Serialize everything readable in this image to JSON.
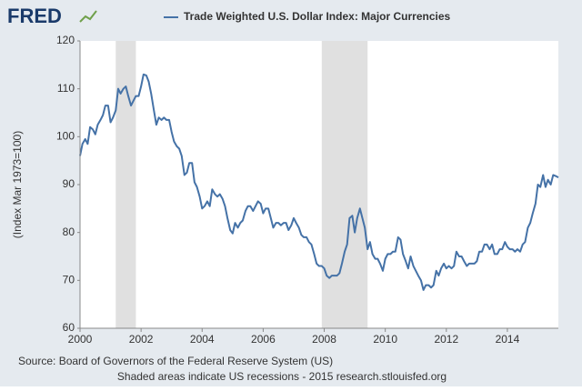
{
  "logo": "FRED",
  "chart_data": {
    "type": "line",
    "y_label": "(Index Mar 1973=100)",
    "source": "Source: Board of Governors of the Federal Reserve System (US)",
    "note": "Shaded areas indicate US recessions - 2015 research.stlouisfed.org",
    "recession_color": "#e0e0e0",
    "recessions": [
      [
        2001.17,
        2001.83
      ],
      [
        2007.92,
        2009.42
      ]
    ],
    "x": [
      2000.0,
      2000.08,
      2000.17,
      2000.25,
      2000.33,
      2000.42,
      2000.5,
      2000.58,
      2000.67,
      2000.75,
      2000.83,
      2000.92,
      2001.0,
      2001.08,
      2001.17,
      2001.25,
      2001.33,
      2001.42,
      2001.5,
      2001.58,
      2001.67,
      2001.75,
      2001.83,
      2001.92,
      2002.0,
      2002.08,
      2002.17,
      2002.25,
      2002.33,
      2002.42,
      2002.5,
      2002.58,
      2002.67,
      2002.75,
      2002.83,
      2002.92,
      2003.0,
      2003.08,
      2003.17,
      2003.25,
      2003.33,
      2003.42,
      2003.5,
      2003.58,
      2003.67,
      2003.75,
      2003.83,
      2003.92,
      2004.0,
      2004.08,
      2004.17,
      2004.25,
      2004.33,
      2004.42,
      2004.5,
      2004.58,
      2004.67,
      2004.75,
      2004.83,
      2004.92,
      2005.0,
      2005.08,
      2005.17,
      2005.25,
      2005.33,
      2005.42,
      2005.5,
      2005.58,
      2005.67,
      2005.75,
      2005.83,
      2005.92,
      2006.0,
      2006.08,
      2006.17,
      2006.25,
      2006.33,
      2006.42,
      2006.5,
      2006.58,
      2006.67,
      2006.75,
      2006.83,
      2006.92,
      2007.0,
      2007.08,
      2007.17,
      2007.25,
      2007.33,
      2007.42,
      2007.5,
      2007.58,
      2007.67,
      2007.75,
      2007.83,
      2007.92,
      2008.0,
      2008.08,
      2008.17,
      2008.25,
      2008.33,
      2008.42,
      2008.5,
      2008.58,
      2008.67,
      2008.75,
      2008.83,
      2008.92,
      2009.0,
      2009.08,
      2009.17,
      2009.25,
      2009.33,
      2009.42,
      2009.5,
      2009.58,
      2009.67,
      2009.75,
      2009.83,
      2009.92,
      2010.0,
      2010.08,
      2010.17,
      2010.25,
      2010.33,
      2010.42,
      2010.5,
      2010.58,
      2010.67,
      2010.75,
      2010.83,
      2010.92,
      2011.0,
      2011.08,
      2011.17,
      2011.25,
      2011.33,
      2011.42,
      2011.5,
      2011.58,
      2011.67,
      2011.75,
      2011.83,
      2011.92,
      2012.0,
      2012.08,
      2012.17,
      2012.25,
      2012.33,
      2012.42,
      2012.5,
      2012.58,
      2012.67,
      2012.75,
      2012.83,
      2012.92,
      2013.0,
      2013.08,
      2013.17,
      2013.25,
      2013.33,
      2013.42,
      2013.5,
      2013.58,
      2013.67,
      2013.75,
      2013.83,
      2013.92,
      2014.0,
      2014.08,
      2014.17,
      2014.25,
      2014.33,
      2014.42,
      2014.5,
      2014.58,
      2014.67,
      2014.75,
      2014.83,
      2014.92,
      2015.0,
      2015.08,
      2015.17,
      2015.25,
      2015.33,
      2015.42,
      2015.5,
      2015.58,
      2015.67
    ],
    "series": [
      {
        "name": "Trade Weighted U.S. Dollar Index: Major Currencies",
        "color": "#4572a7",
        "values": [
          96,
          98.5,
          99.5,
          98.5,
          102,
          101.5,
          100.5,
          102.5,
          103.5,
          104.5,
          106.5,
          106.5,
          103,
          104,
          105.5,
          110,
          109,
          110,
          110.5,
          108.5,
          106.5,
          107.5,
          108.5,
          108.5,
          110.5,
          113,
          112.8,
          111.5,
          109,
          105.5,
          102.5,
          104,
          103.5,
          104,
          103.5,
          103.5,
          101,
          99,
          98,
          97.5,
          96,
          92,
          92.5,
          94.5,
          94.5,
          90.5,
          89.5,
          87.5,
          85,
          85.5,
          86.5,
          85.5,
          89,
          88,
          87.5,
          88,
          87,
          85.5,
          83,
          80.5,
          79.8,
          82,
          81,
          82,
          82.5,
          84.5,
          85.5,
          85.5,
          84.5,
          85.5,
          86.5,
          86,
          84,
          85,
          85,
          83,
          81,
          82,
          82,
          81.5,
          82,
          82,
          80.5,
          81.5,
          83,
          82,
          81,
          79.5,
          79,
          79,
          78,
          77.5,
          75.5,
          73.5,
          73,
          73,
          72.5,
          71,
          70.5,
          71,
          71,
          71,
          71.5,
          73.5,
          76,
          77.5,
          83,
          83.5,
          80,
          83,
          85,
          83,
          81,
          76.5,
          78,
          75.5,
          74.5,
          74.5,
          73.5,
          72,
          74.5,
          75.5,
          75.5,
          76,
          76,
          79,
          78.5,
          75.5,
          74,
          72.5,
          75,
          73,
          72,
          71,
          70,
          68,
          69,
          69,
          68.5,
          69,
          72,
          71,
          72.5,
          73.5,
          72.5,
          73,
          72.5,
          73,
          76,
          75,
          75,
          74,
          73,
          73.5,
          73.5,
          73.5,
          74,
          76,
          76,
          77.5,
          77.5,
          76.5,
          77.5,
          75.5,
          75.5,
          76.5,
          76.5,
          78,
          77,
          76.5,
          76.5,
          76,
          76.5,
          76,
          77.5,
          78,
          81,
          82,
          84,
          86,
          90,
          89.5,
          92,
          89.5,
          91,
          90,
          92,
          91.8,
          91.5
        ]
      }
    ],
    "xlim": [
      2000,
      2015.67
    ],
    "xticks": [
      2000,
      2002,
      2004,
      2006,
      2008,
      2010,
      2012,
      2014
    ],
    "ylim": [
      60,
      120
    ],
    "yticks": [
      60,
      70,
      80,
      90,
      100,
      110,
      120
    ],
    "grid": true
  }
}
